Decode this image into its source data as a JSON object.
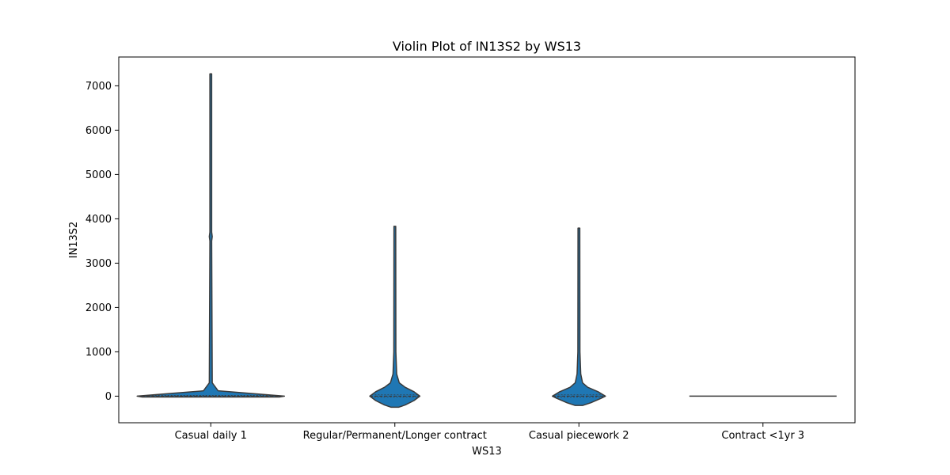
{
  "chart_data": {
    "type": "violin",
    "title": "Violin Plot of IN13S2 by WS13",
    "xlabel": "WS13",
    "ylabel": "IN13S2",
    "categories": [
      "Casual daily 1",
      "Regular/Permanent/Longer contract",
      "Casual piecework 2",
      "Contract <1yr 3"
    ],
    "yticks": [
      0,
      1000,
      2000,
      3000,
      4000,
      5000,
      6000,
      7000
    ],
    "ylim": [
      -600,
      7650
    ],
    "grid": false,
    "legend": "none",
    "colors": {
      "fill": "#1f77b4",
      "outline": "#3a3a3a",
      "axes": "#000000"
    },
    "violins": [
      {
        "category": "Casual daily 1",
        "min": -20,
        "max": 7270,
        "median": 0,
        "q1": -10,
        "q3": 15,
        "profile": [
          [
            -20,
            0.93
          ],
          [
            0,
            1.0
          ],
          [
            60,
            0.55
          ],
          [
            120,
            0.1
          ],
          [
            300,
            0.02
          ],
          [
            3500,
            0.012
          ],
          [
            3600,
            0.02
          ],
          [
            3700,
            0.012
          ],
          [
            7270,
            0.012
          ]
        ]
      },
      {
        "category": "Regular/Permanent/Longer contract",
        "min": -250,
        "max": 3830,
        "median": 0,
        "q1": -20,
        "q3": 30,
        "profile": [
          [
            -250,
            0.05
          ],
          [
            -200,
            0.14
          ],
          [
            -100,
            0.26
          ],
          [
            0,
            0.34
          ],
          [
            100,
            0.26
          ],
          [
            200,
            0.14
          ],
          [
            300,
            0.06
          ],
          [
            500,
            0.025
          ],
          [
            1000,
            0.014
          ],
          [
            3830,
            0.012
          ]
        ]
      },
      {
        "category": "Casual piecework 2",
        "min": -210,
        "max": 3790,
        "median": 0,
        "q1": -20,
        "q3": 30,
        "profile": [
          [
            -210,
            0.05
          ],
          [
            -150,
            0.16
          ],
          [
            -50,
            0.3
          ],
          [
            0,
            0.36
          ],
          [
            100,
            0.26
          ],
          [
            200,
            0.12
          ],
          [
            300,
            0.05
          ],
          [
            500,
            0.025
          ],
          [
            1000,
            0.014
          ],
          [
            3790,
            0.012
          ]
        ]
      },
      {
        "category": "Contract <1yr 3",
        "min": 0,
        "max": 0,
        "median": 0,
        "q1": 0,
        "q3": 0,
        "profile": [
          [
            0,
            1.0
          ]
        ]
      }
    ]
  }
}
